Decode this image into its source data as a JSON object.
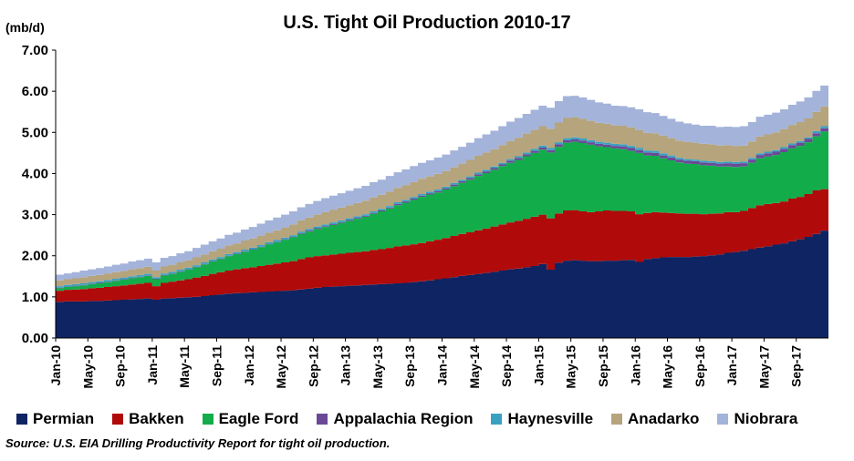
{
  "chart_data": {
    "type": "area",
    "title": "U.S. Tight Oil Production 2010-17",
    "ylabel": "(mb/d)",
    "ylim": [
      0,
      7
    ],
    "yticks": [
      "0.00",
      "1.00",
      "2.00",
      "3.00",
      "4.00",
      "5.00",
      "6.00",
      "7.00"
    ],
    "xticks": [
      "Jan-10",
      "May-10",
      "Sep-10",
      "Jan-11",
      "May-11",
      "Sep-11",
      "Jan-12",
      "May-12",
      "Sep-12",
      "Jan-13",
      "May-13",
      "Sep-13",
      "Jan-14",
      "May-14",
      "Sep-14",
      "Jan-15",
      "May-15",
      "Sep-15",
      "Jan-16",
      "May-16",
      "Sep-16",
      "Jan-17",
      "May-17",
      "Sep-17"
    ],
    "grid": false,
    "legend_position": "bottom",
    "source": "Source: U.S. EIA Drilling Productivity Report for tight oil production.",
    "stacked": true,
    "series": [
      {
        "name": "Permian",
        "color": "#0f2462",
        "values": [
          0.88,
          0.89,
          0.89,
          0.89,
          0.9,
          0.9,
          0.91,
          0.92,
          0.93,
          0.94,
          0.95,
          0.96,
          0.93,
          0.96,
          0.97,
          0.98,
          0.99,
          1.0,
          1.02,
          1.04,
          1.06,
          1.08,
          1.09,
          1.1,
          1.11,
          1.12,
          1.13,
          1.14,
          1.15,
          1.16,
          1.18,
          1.2,
          1.22,
          1.24,
          1.25,
          1.26,
          1.27,
          1.28,
          1.29,
          1.3,
          1.31,
          1.32,
          1.33,
          1.34,
          1.36,
          1.38,
          1.4,
          1.43,
          1.45,
          1.48,
          1.51,
          1.53,
          1.56,
          1.58,
          1.61,
          1.64,
          1.67,
          1.69,
          1.72,
          1.75,
          1.8,
          1.66,
          1.83,
          1.88,
          1.89,
          1.88,
          1.87,
          1.87,
          1.88,
          1.88,
          1.89,
          1.9,
          1.85,
          1.92,
          1.94,
          1.96,
          1.97,
          1.97,
          1.97,
          1.98,
          1.99,
          2.01,
          2.03,
          2.07,
          2.09,
          2.12,
          2.16,
          2.2,
          2.23,
          2.27,
          2.3,
          2.35,
          2.4,
          2.46,
          2.53,
          2.61
        ]
      },
      {
        "name": "Bakken",
        "color": "#b10a0a",
        "values": [
          0.27,
          0.28,
          0.29,
          0.3,
          0.31,
          0.32,
          0.33,
          0.34,
          0.35,
          0.36,
          0.37,
          0.38,
          0.33,
          0.38,
          0.4,
          0.42,
          0.44,
          0.47,
          0.49,
          0.52,
          0.54,
          0.56,
          0.58,
          0.6,
          0.61,
          0.63,
          0.65,
          0.67,
          0.69,
          0.71,
          0.74,
          0.76,
          0.77,
          0.77,
          0.78,
          0.79,
          0.8,
          0.81,
          0.82,
          0.84,
          0.85,
          0.87,
          0.9,
          0.91,
          0.92,
          0.93,
          0.95,
          0.96,
          0.98,
          1.0,
          1.02,
          1.04,
          1.06,
          1.08,
          1.1,
          1.12,
          1.14,
          1.16,
          1.18,
          1.2,
          1.2,
          1.25,
          1.2,
          1.22,
          1.22,
          1.2,
          1.19,
          1.21,
          1.22,
          1.21,
          1.2,
          1.18,
          1.16,
          1.12,
          1.12,
          1.09,
          1.07,
          1.06,
          1.05,
          1.04,
          1.02,
          1.01,
          1.0,
          0.99,
          0.97,
          0.97,
          1.0,
          1.03,
          1.03,
          1.01,
          1.02,
          1.04,
          1.03,
          1.04,
          1.06,
          1.01
        ]
      },
      {
        "name": "Eagle Ford",
        "color": "#12ad4a",
        "values": [
          0.06,
          0.07,
          0.08,
          0.09,
          0.1,
          0.11,
          0.12,
          0.13,
          0.14,
          0.15,
          0.16,
          0.17,
          0.17,
          0.18,
          0.19,
          0.21,
          0.23,
          0.25,
          0.28,
          0.3,
          0.32,
          0.35,
          0.37,
          0.4,
          0.43,
          0.46,
          0.5,
          0.52,
          0.55,
          0.58,
          0.61,
          0.63,
          0.66,
          0.69,
          0.72,
          0.75,
          0.78,
          0.81,
          0.84,
          0.88,
          0.92,
          0.96,
          1.0,
          1.04,
          1.08,
          1.12,
          1.14,
          1.15,
          1.18,
          1.21,
          1.24,
          1.28,
          1.32,
          1.35,
          1.38,
          1.42,
          1.45,
          1.48,
          1.52,
          1.55,
          1.58,
          1.6,
          1.62,
          1.65,
          1.66,
          1.66,
          1.64,
          1.58,
          1.54,
          1.52,
          1.5,
          1.47,
          1.49,
          1.4,
          1.37,
          1.32,
          1.28,
          1.24,
          1.22,
          1.21,
          1.19,
          1.17,
          1.14,
          1.11,
          1.1,
          1.08,
          1.1,
          1.14,
          1.15,
          1.17,
          1.2,
          1.22,
          1.24,
          1.26,
          1.31,
          1.4
        ]
      },
      {
        "name": "Appalachia Region",
        "color": "#6a4a96",
        "values": [
          0.01,
          0.01,
          0.01,
          0.01,
          0.01,
          0.01,
          0.01,
          0.01,
          0.01,
          0.01,
          0.01,
          0.01,
          0.01,
          0.01,
          0.01,
          0.01,
          0.01,
          0.01,
          0.01,
          0.01,
          0.01,
          0.01,
          0.01,
          0.01,
          0.01,
          0.01,
          0.01,
          0.01,
          0.01,
          0.01,
          0.02,
          0.02,
          0.02,
          0.02,
          0.02,
          0.02,
          0.02,
          0.02,
          0.02,
          0.02,
          0.02,
          0.02,
          0.03,
          0.03,
          0.03,
          0.03,
          0.03,
          0.03,
          0.03,
          0.04,
          0.04,
          0.04,
          0.04,
          0.04,
          0.04,
          0.04,
          0.05,
          0.05,
          0.05,
          0.05,
          0.05,
          0.06,
          0.06,
          0.06,
          0.06,
          0.06,
          0.06,
          0.06,
          0.06,
          0.06,
          0.07,
          0.07,
          0.07,
          0.07,
          0.07,
          0.07,
          0.07,
          0.07,
          0.07,
          0.07,
          0.07,
          0.07,
          0.07,
          0.08,
          0.08,
          0.08,
          0.08,
          0.08,
          0.08,
          0.08,
          0.08,
          0.08,
          0.08,
          0.08,
          0.08,
          0.08
        ]
      },
      {
        "name": "Haynesville",
        "color": "#3aa0c2",
        "values": [
          0.04,
          0.04,
          0.04,
          0.04,
          0.04,
          0.04,
          0.04,
          0.04,
          0.04,
          0.04,
          0.04,
          0.04,
          0.04,
          0.04,
          0.04,
          0.04,
          0.04,
          0.04,
          0.04,
          0.04,
          0.04,
          0.04,
          0.04,
          0.04,
          0.04,
          0.04,
          0.04,
          0.04,
          0.04,
          0.04,
          0.04,
          0.04,
          0.04,
          0.04,
          0.04,
          0.04,
          0.04,
          0.04,
          0.04,
          0.04,
          0.04,
          0.04,
          0.04,
          0.04,
          0.04,
          0.04,
          0.04,
          0.04,
          0.04,
          0.04,
          0.04,
          0.04,
          0.04,
          0.04,
          0.04,
          0.04,
          0.04,
          0.04,
          0.04,
          0.05,
          0.05,
          0.05,
          0.05,
          0.05,
          0.05,
          0.05,
          0.05,
          0.05,
          0.05,
          0.05,
          0.05,
          0.05,
          0.05,
          0.05,
          0.05,
          0.05,
          0.05,
          0.04,
          0.04,
          0.04,
          0.04,
          0.04,
          0.04,
          0.04,
          0.04,
          0.04,
          0.04,
          0.04,
          0.04,
          0.04,
          0.04,
          0.04,
          0.04,
          0.04,
          0.05,
          0.05
        ]
      },
      {
        "name": "Anadarko",
        "color": "#b5a47c",
        "values": [
          0.14,
          0.14,
          0.14,
          0.15,
          0.15,
          0.15,
          0.16,
          0.16,
          0.16,
          0.17,
          0.17,
          0.17,
          0.16,
          0.17,
          0.17,
          0.18,
          0.18,
          0.19,
          0.19,
          0.2,
          0.2,
          0.21,
          0.21,
          0.22,
          0.22,
          0.23,
          0.23,
          0.24,
          0.25,
          0.26,
          0.27,
          0.28,
          0.29,
          0.3,
          0.31,
          0.31,
          0.32,
          0.32,
          0.33,
          0.34,
          0.34,
          0.35,
          0.35,
          0.36,
          0.36,
          0.37,
          0.37,
          0.38,
          0.38,
          0.38,
          0.39,
          0.4,
          0.41,
          0.42,
          0.42,
          0.43,
          0.44,
          0.45,
          0.46,
          0.46,
          0.47,
          0.47,
          0.48,
          0.49,
          0.49,
          0.48,
          0.47,
          0.46,
          0.46,
          0.45,
          0.45,
          0.45,
          0.44,
          0.43,
          0.43,
          0.43,
          0.42,
          0.42,
          0.42,
          0.41,
          0.41,
          0.41,
          0.4,
          0.4,
          0.39,
          0.39,
          0.4,
          0.41,
          0.42,
          0.43,
          0.44,
          0.45,
          0.46,
          0.46,
          0.47,
          0.48
        ]
      },
      {
        "name": "Niobrara",
        "color": "#a3b3da",
        "values": [
          0.14,
          0.14,
          0.15,
          0.16,
          0.16,
          0.17,
          0.17,
          0.18,
          0.18,
          0.19,
          0.19,
          0.2,
          0.2,
          0.21,
          0.21,
          0.22,
          0.22,
          0.23,
          0.24,
          0.24,
          0.25,
          0.26,
          0.26,
          0.27,
          0.28,
          0.29,
          0.3,
          0.31,
          0.31,
          0.32,
          0.32,
          0.33,
          0.33,
          0.34,
          0.34,
          0.35,
          0.35,
          0.36,
          0.36,
          0.37,
          0.37,
          0.38,
          0.38,
          0.38,
          0.39,
          0.39,
          0.39,
          0.4,
          0.4,
          0.41,
          0.41,
          0.42,
          0.43,
          0.44,
          0.45,
          0.46,
          0.47,
          0.48,
          0.48,
          0.49,
          0.5,
          0.51,
          0.52,
          0.53,
          0.52,
          0.52,
          0.51,
          0.5,
          0.49,
          0.48,
          0.48,
          0.49,
          0.5,
          0.5,
          0.49,
          0.48,
          0.47,
          0.46,
          0.45,
          0.44,
          0.44,
          0.45,
          0.45,
          0.45,
          0.46,
          0.47,
          0.47,
          0.48,
          0.48,
          0.48,
          0.48,
          0.49,
          0.5,
          0.51,
          0.51,
          0.51
        ]
      }
    ]
  }
}
